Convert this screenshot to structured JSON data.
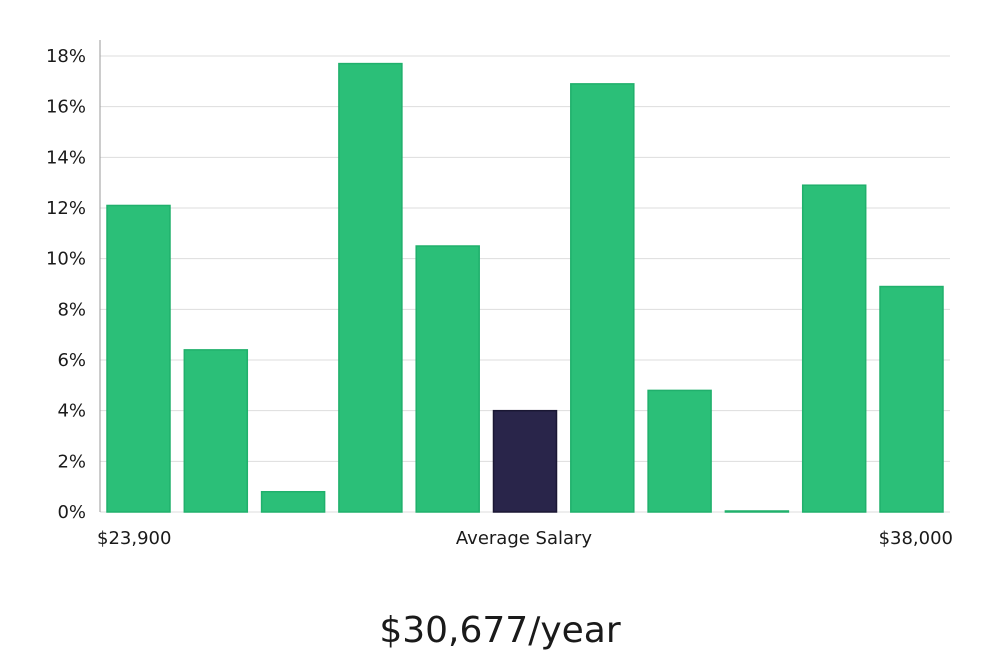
{
  "chart_data": {
    "type": "bar",
    "title": "",
    "xlabel": "Average Salary",
    "ylabel": "",
    "x_range_labels": {
      "min": "$23,900",
      "max": "$38,000"
    },
    "ylim": [
      0,
      18
    ],
    "ytick_values": [
      0,
      2,
      4,
      6,
      8,
      10,
      12,
      14,
      16,
      18
    ],
    "ytick_labels": [
      "0%",
      "2%",
      "4%",
      "6%",
      "8%",
      "10%",
      "12%",
      "14%",
      "16%",
      "18%"
    ],
    "values": [
      12.1,
      6.4,
      0.8,
      17.7,
      10.5,
      4.0,
      16.9,
      4.8,
      0.0,
      12.9,
      8.9
    ],
    "highlight_index": 5,
    "grid": true,
    "colors": {
      "bar": "#2bbf78",
      "bar_edge": "#20b06c",
      "highlight": "#29254a",
      "highlight_edge": "#1a1733",
      "grid": "#dddddd",
      "axis": "#999999"
    }
  },
  "summary": {
    "salary": "$30,677/year"
  }
}
